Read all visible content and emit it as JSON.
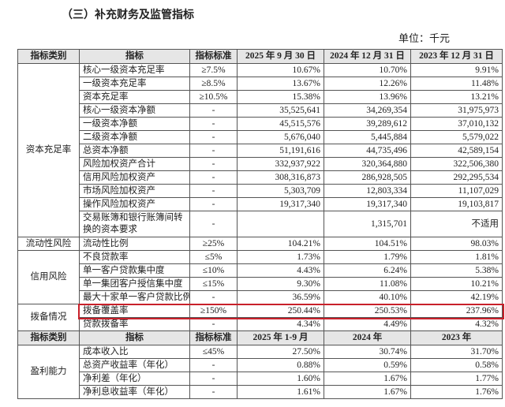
{
  "heading": "（三）补充财务及监管指标",
  "unit": "单位：千元",
  "sections": [
    {
      "header": [
        "指标类别",
        "指标",
        "指标标准",
        "2025 年 9 月 30 日",
        "2024 年 12 月 31 日",
        "2023 年 12 月 31 日"
      ],
      "groups": [
        {
          "category": "资本充足率",
          "rows": [
            [
              "核心一级资本充足率",
              "≥7.5%",
              "10.67%",
              "10.70%",
              "9.91%"
            ],
            [
              "一级资本充足率",
              "≥8.5%",
              "13.67%",
              "12.26%",
              "11.48%"
            ],
            [
              "资本充足率",
              "≥10.5%",
              "15.38%",
              "13.96%",
              "13.21%"
            ],
            [
              "核心一级资本净额",
              "-",
              "35,525,641",
              "34,269,354",
              "31,975,973"
            ],
            [
              "一级资本净额",
              "-",
              "45,515,576",
              "39,289,612",
              "37,010,132"
            ],
            [
              "二级资本净额",
              "-",
              "5,676,040",
              "5,445,884",
              "5,579,022"
            ],
            [
              "总资本净额",
              "-",
              "51,191,616",
              "44,735,496",
              "42,589,154"
            ],
            [
              "风险加权资产合计",
              "-",
              "332,937,922",
              "320,364,880",
              "322,506,380"
            ],
            [
              "信用风险加权资产",
              "-",
              "308,316,873",
              "286,928,505",
              "292,295,534"
            ],
            [
              "市场风险加权资产",
              "-",
              "5,303,709",
              "12,803,334",
              "11,107,029"
            ],
            [
              "操作风险加权资产",
              "-",
              "19,317,340",
              "19,317,340",
              "19,103,817"
            ],
            [
              "交易账簿和银行账簿间转换的资本要求",
              "-",
              null,
              "1,315,701",
              "不适用"
            ]
          ]
        },
        {
          "category": "流动性风险",
          "rows": [
            [
              "流动性比例",
              "≥25%",
              "104.21%",
              "104.51%",
              "98.03%"
            ]
          ]
        },
        {
          "category": "信用风险",
          "rows": [
            [
              "不良贷款率",
              "≤5%",
              "1.73%",
              "1.79%",
              "1.81%"
            ],
            [
              "单一客户贷款集中度",
              "≤10%",
              "4.43%",
              "6.24%",
              "5.38%"
            ],
            [
              "单一集团客户授信集中度",
              "≤15%",
              "9.30%",
              "11.08%",
              "10.21%"
            ],
            [
              "最大十家单一客户贷款比例",
              "-",
              "36.59%",
              "40.10%",
              "42.19%"
            ]
          ]
        },
        {
          "category": "拨备情况",
          "rows": [
            [
              "拨备覆盖率",
              "≥150%",
              "250.44%",
              "250.53%",
              "237.96%"
            ],
            [
              "贷款拨备率",
              "-",
              "4.34%",
              "4.49%",
              "4.32%"
            ]
          ]
        }
      ]
    },
    {
      "header": [
        "指标类别",
        "指标",
        "指标标准",
        "2025 年 1-9 月",
        "2024 年",
        "2023 年"
      ],
      "groups": [
        {
          "category": "盈利能力",
          "rows": [
            [
              "成本收入比",
              "≤45%",
              "27.50%",
              "30.74%",
              "31.70%"
            ],
            [
              "总资产收益率（年化）",
              "-",
              "0.88%",
              "0.59%",
              "0.58%"
            ],
            [
              "净利差（年化）",
              "-",
              "1.60%",
              "1.67%",
              "1.77%"
            ],
            [
              "净利息收益率（年化）",
              "-",
              "1.61%",
              "1.67%",
              "1.76%"
            ]
          ]
        }
      ]
    }
  ]
}
